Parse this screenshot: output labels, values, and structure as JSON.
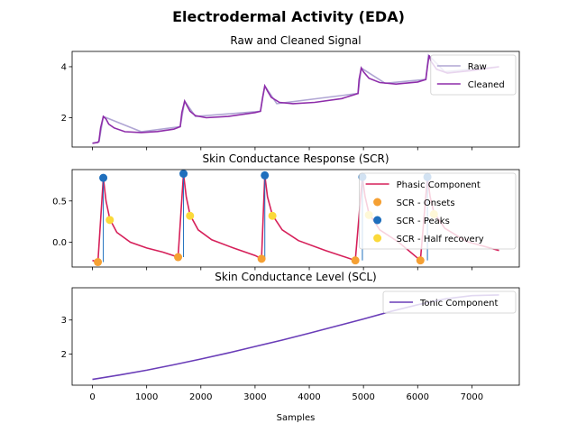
{
  "figure_title": "Electrodermal Activity (EDA)",
  "chart_data": [
    {
      "type": "line",
      "title": "Raw and Cleaned Signal",
      "xlabel": "",
      "ylabel": "",
      "xlim": [
        -375,
        7875
      ],
      "ylim": [
        0.85,
        4.6
      ],
      "xticks": [
        0,
        1000,
        2000,
        3000,
        4000,
        5000,
        6000,
        7000
      ],
      "xtick_labels_shown": false,
      "yticks": [
        2,
        4
      ],
      "ytick_labels": [
        "2",
        "4"
      ],
      "legend": "top-right",
      "grid": false,
      "series": [
        {
          "name": "Raw",
          "color": "#b0a6d4",
          "x": [
            0,
            120,
            200,
            900,
            1620,
            1700,
            1900,
            3100,
            3180,
            3400,
            4900,
            4960,
            5400,
            6150,
            6200,
            6500,
            7500
          ],
          "y": [
            1.0,
            1.05,
            2.05,
            1.45,
            1.65,
            2.65,
            2.05,
            2.25,
            3.25,
            2.55,
            2.95,
            3.95,
            3.35,
            3.5,
            4.45,
            3.8,
            4.0
          ]
        },
        {
          "name": "Cleaned",
          "color": "#8e2daa",
          "x": [
            0,
            100,
            120,
            150,
            200,
            250,
            300,
            400,
            600,
            900,
            1200,
            1500,
            1620,
            1650,
            1700,
            1750,
            1800,
            1900,
            2100,
            2500,
            3000,
            3100,
            3140,
            3180,
            3230,
            3300,
            3450,
            3700,
            4100,
            4600,
            4900,
            4920,
            4960,
            5000,
            5100,
            5300,
            5600,
            6000,
            6150,
            6180,
            6210,
            6250,
            6350,
            6550,
            7000,
            7500
          ],
          "y": [
            1.0,
            1.03,
            1.1,
            1.6,
            2.05,
            1.95,
            1.75,
            1.6,
            1.45,
            1.42,
            1.46,
            1.55,
            1.65,
            2.2,
            2.65,
            2.45,
            2.25,
            2.08,
            2.0,
            2.05,
            2.2,
            2.25,
            2.8,
            3.25,
            3.05,
            2.8,
            2.6,
            2.55,
            2.6,
            2.75,
            2.95,
            3.5,
            3.95,
            3.8,
            3.55,
            3.38,
            3.32,
            3.4,
            3.5,
            4.0,
            4.45,
            4.2,
            3.9,
            3.75,
            3.85,
            4.0
          ]
        }
      ]
    },
    {
      "type": "line",
      "title": "Skin Conductance Response (SCR)",
      "xlabel": "",
      "ylabel": "",
      "xlim": [
        -375,
        7875
      ],
      "ylim": [
        -0.3,
        0.88
      ],
      "xticks": [
        0,
        1000,
        2000,
        3000,
        4000,
        5000,
        6000,
        7000
      ],
      "xtick_labels_shown": false,
      "yticks": [
        0.0,
        0.5
      ],
      "ytick_labels": [
        "0.0",
        "0.5"
      ],
      "legend": "top-right",
      "grid": false,
      "series": [
        {
          "name": "Phasic Component",
          "color": "#d6205a",
          "x": [
            0,
            100,
            200,
            250,
            320,
            450,
            700,
            1000,
            1300,
            1580,
            1680,
            1730,
            1800,
            1950,
            2200,
            2600,
            3000,
            3120,
            3180,
            3230,
            3320,
            3500,
            3800,
            4300,
            4850,
            4980,
            5030,
            5100,
            5300,
            5650,
            6050,
            6180,
            6230,
            6300,
            6500,
            6900,
            7500
          ],
          "y": [
            -0.22,
            -0.24,
            0.78,
            0.5,
            0.28,
            0.12,
            0.0,
            -0.07,
            -0.12,
            -0.18,
            0.83,
            0.55,
            0.33,
            0.15,
            0.03,
            -0.07,
            -0.16,
            -0.2,
            0.81,
            0.55,
            0.33,
            0.15,
            0.02,
            -0.1,
            -0.22,
            0.79,
            0.55,
            0.35,
            0.15,
            0.0,
            -0.22,
            0.79,
            0.55,
            0.36,
            0.17,
            0.01,
            -0.1
          ]
        }
      ],
      "scatter": [
        {
          "name": "SCR - Onsets",
          "color": "#f5a033",
          "x": [
            100,
            1580,
            3120,
            4850,
            6050
          ],
          "y": [
            -0.24,
            -0.18,
            -0.2,
            -0.22,
            -0.22
          ]
        },
        {
          "name": "SCR - Peaks",
          "color": "#1f6fbd",
          "x": [
            200,
            1680,
            3180,
            4980,
            6180
          ],
          "y": [
            0.78,
            0.83,
            0.81,
            0.79,
            0.79
          ]
        },
        {
          "name": "SCR - Half recovery",
          "color": "#fbd93a",
          "x": [
            320,
            1800,
            3320,
            5100,
            6300
          ],
          "y": [
            0.27,
            0.32,
            0.32,
            0.33,
            0.34
          ]
        }
      ],
      "risers": [
        {
          "x": 200,
          "y_from": -0.24,
          "y_to": 0.78
        },
        {
          "x": 1680,
          "y_from": -0.18,
          "y_to": 0.83
        },
        {
          "x": 3180,
          "y_from": -0.2,
          "y_to": 0.81
        },
        {
          "x": 4980,
          "y_from": -0.22,
          "y_to": 0.79
        },
        {
          "x": 6180,
          "y_from": -0.22,
          "y_to": 0.79
        }
      ]
    },
    {
      "type": "line",
      "title": "Skin Conductance Level (SCL)",
      "xlabel": "Samples",
      "ylabel": "",
      "xlim": [
        -375,
        7875
      ],
      "ylim": [
        1.08,
        3.95
      ],
      "xticks": [
        0,
        1000,
        2000,
        3000,
        4000,
        5000,
        6000,
        7000
      ],
      "xtick_labels": [
        "0",
        "1000",
        "2000",
        "3000",
        "4000",
        "5000",
        "6000",
        "7000"
      ],
      "xtick_labels_shown": true,
      "yticks": [
        2,
        3
      ],
      "ytick_labels": [
        "2",
        "3"
      ],
      "legend": "top-right",
      "grid": false,
      "series": [
        {
          "name": "Tonic Component",
          "color": "#6a3db8",
          "x": [
            0,
            500,
            1000,
            1500,
            2000,
            2500,
            3000,
            3500,
            4000,
            4500,
            5000,
            5500,
            6000,
            6500,
            7000,
            7500
          ],
          "y": [
            1.25,
            1.38,
            1.52,
            1.68,
            1.85,
            2.03,
            2.22,
            2.41,
            2.61,
            2.82,
            3.03,
            3.25,
            3.45,
            3.62,
            3.72,
            3.74
          ]
        }
      ]
    }
  ]
}
